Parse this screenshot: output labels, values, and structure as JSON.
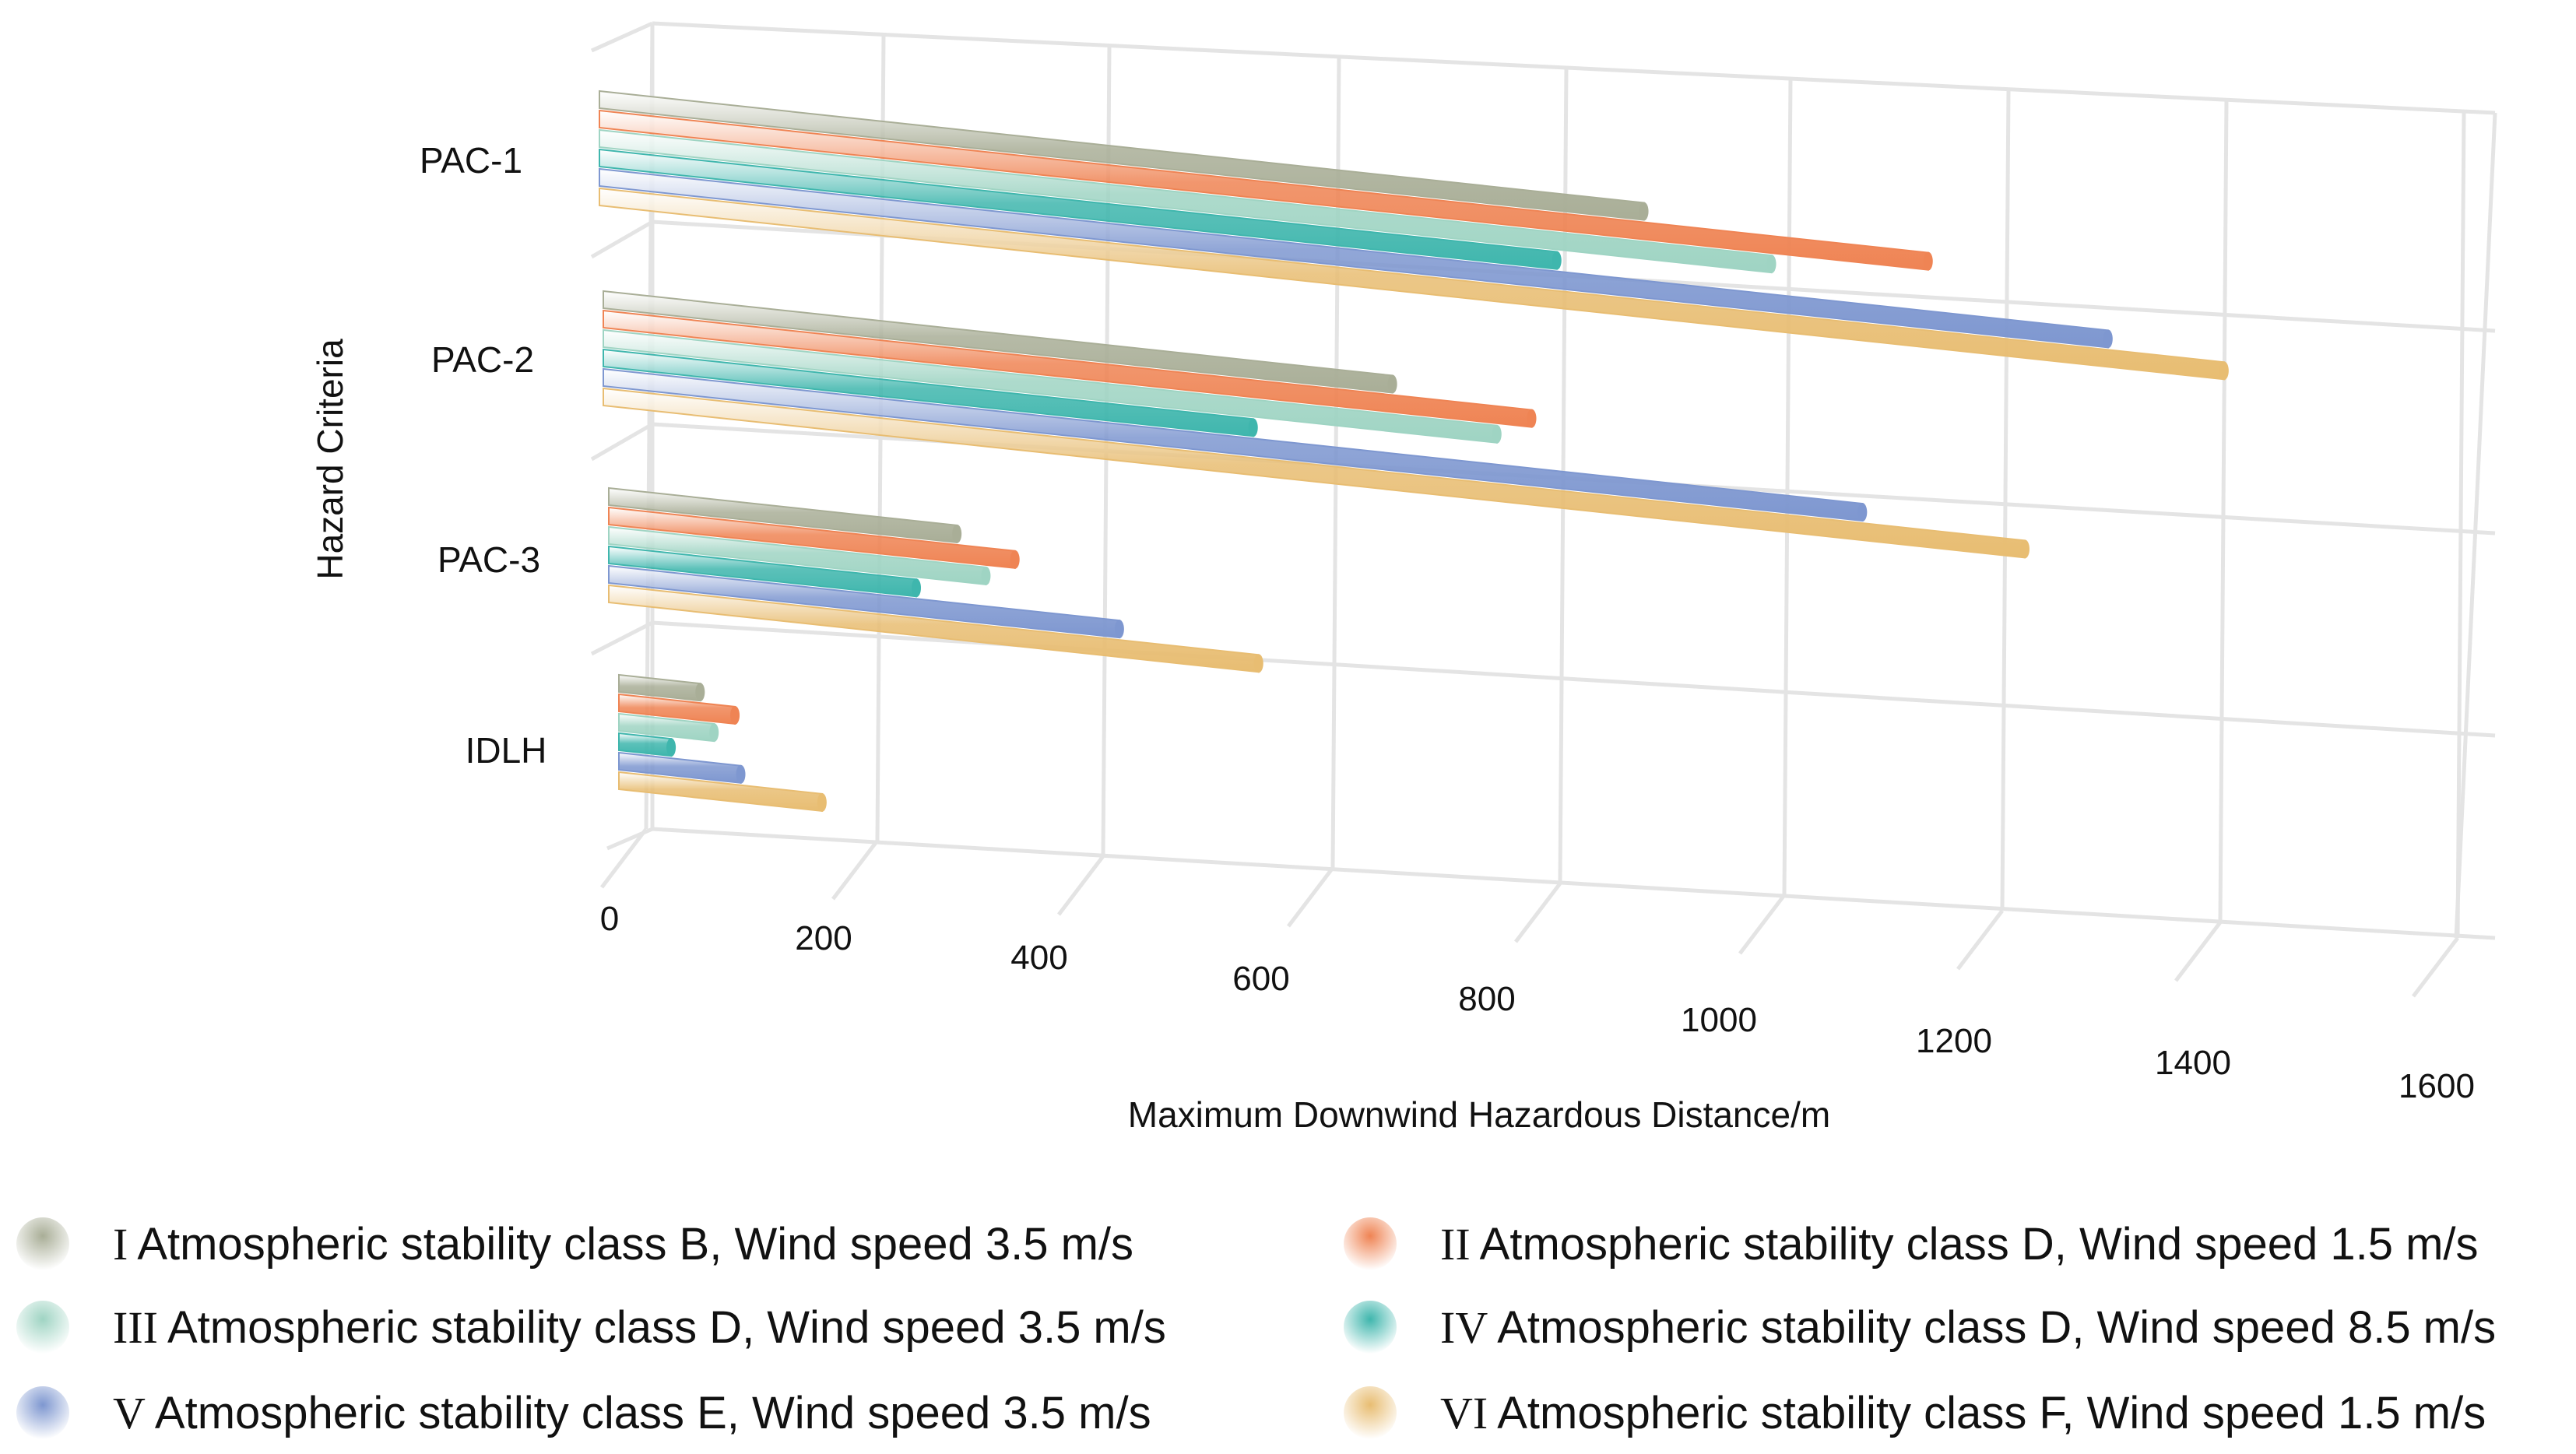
{
  "chart_data": {
    "type": "bar",
    "orientation": "horizontal",
    "style": "3d-perspective",
    "title": "",
    "xlabel": "Maximum Downwind Hazardous Distance/m",
    "ylabel": "Hazard Criteria",
    "xlim": [
      0,
      1600
    ],
    "xticks": [
      "0",
      "200",
      "400",
      "600",
      "800",
      "1000",
      "1200",
      "1400",
      "1600"
    ],
    "categories": [
      "PAC-1",
      "PAC-2",
      "PAC-3",
      "IDLH"
    ],
    "series": [
      {
        "numeral": "I",
        "name": "Atmospheric stability class B, Wind speed 3.5 m/s",
        "color": "#a9ae97",
        "values": [
          900,
          680,
          300,
          70
        ]
      },
      {
        "numeral": "II",
        "name": "Atmospheric stability class D, Wind speed 1.5 m/s",
        "color": "#ef8454",
        "values": [
          1145,
          800,
          350,
          100
        ]
      },
      {
        "numeral": "III",
        "name": "Atmospheric stability class D, Wind speed 3.5 m/s",
        "color": "#9fd4c3",
        "values": [
          1010,
          770,
          325,
          82
        ]
      },
      {
        "numeral": "IV",
        "name": "Atmospheric stability class D, Wind speed 8.5 m/s",
        "color": "#3fb6ad",
        "values": [
          825,
          560,
          265,
          45
        ]
      },
      {
        "numeral": "V",
        "name": "Atmospheric stability class E, Wind speed 3.5 m/s",
        "color": "#7e97d0",
        "values": [
          1300,
          1085,
          440,
          105
        ]
      },
      {
        "numeral": "VI",
        "name": "Atmospheric stability class F, Wind speed 1.5 m/s",
        "color": "#e8bd72",
        "values": [
          1400,
          1225,
          560,
          175
        ]
      }
    ],
    "grid": true,
    "legend_position": "bottom"
  }
}
